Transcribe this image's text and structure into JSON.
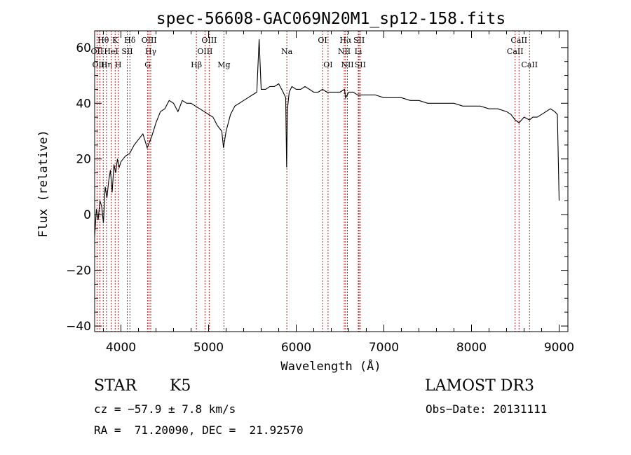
{
  "chart_data": {
    "type": "line",
    "title": "spec-56608-GAC069N20M1_sp12-158.fits",
    "xlabel": "Wavelength (Å)",
    "ylabel": "Flux (relative)",
    "xlim": [
      3700,
      9100
    ],
    "ylim": [
      -42,
      66
    ],
    "xticks": [
      4000,
      5000,
      6000,
      7000,
      8000,
      9000
    ],
    "xtick_labels": [
      "4000",
      "5000",
      "6000",
      "7000",
      "8000",
      "9000"
    ],
    "yticks": [
      -40,
      -20,
      0,
      20,
      40,
      60
    ],
    "ytick_labels": [
      "−40",
      "−20",
      "0",
      "20",
      "40",
      "60"
    ],
    "series": [
      {
        "name": "spectrum",
        "x": [
          3700,
          3720,
          3740,
          3760,
          3780,
          3800,
          3820,
          3840,
          3860,
          3880,
          3900,
          3920,
          3940,
          3960,
          3980,
          4000,
          4050,
          4100,
          4150,
          4200,
          4250,
          4300,
          4350,
          4400,
          4450,
          4500,
          4550,
          4600,
          4650,
          4700,
          4750,
          4800,
          4850,
          4900,
          4950,
          5000,
          5050,
          5100,
          5150,
          5170,
          5180,
          5200,
          5250,
          5300,
          5350,
          5400,
          5450,
          5500,
          5550,
          5577,
          5600,
          5650,
          5700,
          5750,
          5800,
          5850,
          5880,
          5890,
          5900,
          5920,
          5950,
          6000,
          6050,
          6100,
          6150,
          6200,
          6250,
          6300,
          6350,
          6400,
          6450,
          6500,
          6550,
          6563,
          6600,
          6650,
          6700,
          6750,
          6800,
          6900,
          7000,
          7100,
          7200,
          7300,
          7400,
          7500,
          7600,
          7700,
          7800,
          7900,
          8000,
          8100,
          8200,
          8300,
          8400,
          8450,
          8498,
          8542,
          8600,
          8662,
          8700,
          8750,
          8800,
          8850,
          8900,
          8950,
          8980,
          9000
        ],
        "y": [
          -8,
          2,
          -2,
          5,
          3,
          -3,
          10,
          6,
          12,
          16,
          8,
          18,
          15,
          20,
          17,
          19,
          21,
          22,
          25,
          27,
          29,
          24,
          28,
          33,
          37,
          38,
          41,
          40,
          37,
          41,
          40,
          40,
          39,
          38,
          37,
          36,
          35,
          32,
          30,
          24,
          26,
          30,
          36,
          39,
          40,
          41,
          42,
          43,
          44,
          63,
          45,
          45,
          46,
          46,
          47,
          44,
          42,
          17,
          38,
          44,
          46,
          45,
          45,
          46,
          45,
          44,
          44,
          45,
          44,
          44,
          44,
          44,
          45,
          42,
          44,
          44,
          43,
          43,
          43,
          43,
          42,
          42,
          42,
          41,
          41,
          40,
          40,
          40,
          40,
          39,
          39,
          39,
          38,
          38,
          37,
          36,
          34,
          33,
          35,
          34,
          35,
          35,
          36,
          37,
          38,
          37,
          36,
          5
        ],
        "color": "#000000"
      }
    ],
    "line_markers": [
      {
        "label": "Hθ",
        "x": 3798,
        "row": 1
      },
      {
        "label": "OII",
        "x": 3727,
        "row": 2
      },
      {
        "label": "OIII",
        "x": 3760,
        "row": 3
      },
      {
        "label": "Hη",
        "x": 3835,
        "row": 3
      },
      {
        "label": "HeI",
        "x": 3889,
        "row": 2
      },
      {
        "label": "K",
        "x": 3934,
        "row": 1
      },
      {
        "label": "H",
        "x": 3969,
        "row": 3
      },
      {
        "label": "SII",
        "x": 4072,
        "row": 2
      },
      {
        "label": "Hδ",
        "x": 4102,
        "row": 1
      },
      {
        "label": "OIII",
        "x": 4321,
        "row": 1
      },
      {
        "label": "Hγ",
        "x": 4340,
        "row": 2
      },
      {
        "label": "G",
        "x": 4305,
        "row": 3
      },
      {
        "label": "Hβ",
        "x": 4861,
        "row": 3
      },
      {
        "label": "OIII",
        "x": 4959,
        "row": 2
      },
      {
        "label": "OIII",
        "x": 5007,
        "row": 1
      },
      {
        "label": "Mg",
        "x": 5175,
        "row": 3
      },
      {
        "label": "Na",
        "x": 5893,
        "row": 2
      },
      {
        "label": "OI",
        "x": 6300,
        "row": 1
      },
      {
        "label": "OI",
        "x": 6363,
        "row": 3
      },
      {
        "label": "Hα",
        "x": 6563,
        "row": 1
      },
      {
        "label": "NII",
        "x": 6548,
        "row": 2
      },
      {
        "label": "NII",
        "x": 6584,
        "row": 3
      },
      {
        "label": "SII",
        "x": 6717,
        "row": 1
      },
      {
        "label": "Li",
        "x": 6708,
        "row": 2
      },
      {
        "label": "SII",
        "x": 6731,
        "row": 3
      },
      {
        "label": "CaII",
        "x": 8542,
        "row": 1
      },
      {
        "label": "CaII",
        "x": 8498,
        "row": 2
      },
      {
        "label": "CaII",
        "x": 8662,
        "row": 3
      }
    ],
    "marker_color": "#b22222"
  },
  "info": {
    "object_class": "STAR",
    "subclass": "K5",
    "survey": "LAMOST DR3",
    "redshift": "cz = −57.9 ± 7.8 km/s",
    "obs_date": "Obs−Date: 20131111",
    "coords": "RA =  71.20090, DEC =  21.92570"
  }
}
